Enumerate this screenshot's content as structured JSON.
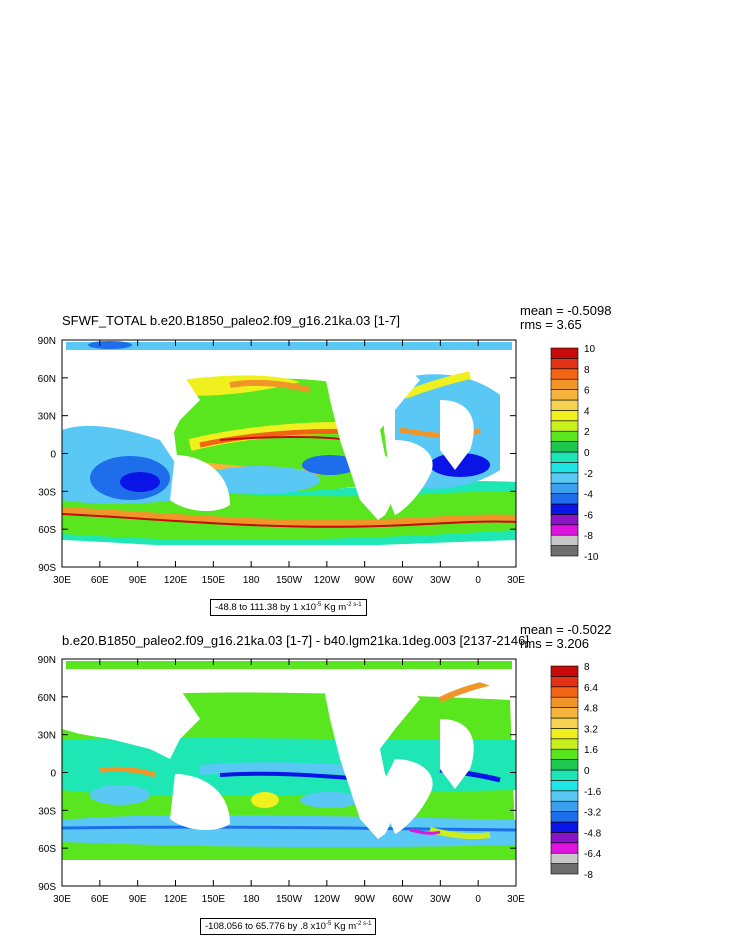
{
  "panels": [
    {
      "title": "SFWF_TOTAL b.e20.B1850_paleo2.f09_g16.21ka.03 [1-7]",
      "mean": "mean = -0.5098",
      "rms": "rms = 3.65",
      "range_prefix": "-48.8 to 111.38 by 1 x10",
      "range_exp": "-5",
      "range_units": " Kg m",
      "range_units_exp": "-2",
      "range_units_sfx": "-1",
      "colorbar_labels": [
        "10",
        "8",
        "6",
        "4",
        "2",
        "0",
        "-2",
        "-4",
        "-6",
        "-8",
        "-10"
      ]
    },
    {
      "title": "b.e20.B1850_paleo2.f09_g16.21ka.03 [1-7] - b40.lgm21ka.1deg.003 [2137-2146]",
      "mean": "mean = -0.5022",
      "rms": "rms = 3.206",
      "range_prefix": "-108.056 to 65.776 by .8 x10",
      "range_exp": "-5",
      "range_units": " Kg m",
      "range_units_exp": "-2",
      "range_units_sfx": "-1",
      "colorbar_labels": [
        "8",
        "6.4",
        "4.8",
        "3.2",
        "1.6",
        "0",
        "-1.6",
        "-3.2",
        "-4.8",
        "-6.4",
        "-8"
      ]
    }
  ],
  "axes": {
    "lat_labels": [
      "90N",
      "60N",
      "30N",
      "0",
      "30S",
      "60S",
      "90S"
    ],
    "lon_labels": [
      "30E",
      "60E",
      "90E",
      "120E",
      "150E",
      "180",
      "150W",
      "120W",
      "90W",
      "60W",
      "30W",
      "0",
      "30E"
    ]
  },
  "colors": {
    "levels": [
      "#6e6e6e",
      "#c8c8c8",
      "#e014e0",
      "#8c14c8",
      "#0a14e6",
      "#1e6eeb",
      "#3ca0f0",
      "#5ac8f5",
      "#1ee6e6",
      "#1ee6b4",
      "#1ec850",
      "#5ae61e",
      "#c8f01e",
      "#f0f01e",
      "#f5d250",
      "#f5b43c",
      "#f09628",
      "#f06414",
      "#e63214",
      "#c80a0a"
    ]
  },
  "chart_data": [
    {
      "type": "heatmap",
      "title": "SFWF_TOTAL b.e20.B1850_paleo2.f09_g16.21ka.03 [1-7]",
      "xlabel": "",
      "ylabel": "",
      "x_range": [
        "30E",
        "30E"
      ],
      "y_range": [
        "90S",
        "90N"
      ],
      "color_range": [
        -10,
        10
      ],
      "color_levels": [
        -10,
        -9,
        -8,
        -7,
        -6,
        -5,
        -4,
        -3,
        -2,
        -1,
        0,
        1,
        2,
        3,
        4,
        5,
        6,
        7,
        8,
        9,
        10
      ],
      "stats": {
        "mean": -0.5098,
        "rms": 3.65
      },
      "data_range": {
        "min": -48.8,
        "max": 111.38,
        "interval": 1,
        "scale": "x10-5",
        "units": "Kg m-2 s-1"
      }
    },
    {
      "type": "heatmap",
      "title": "b.e20.B1850_paleo2.f09_g16.21ka.03 [1-7] - b40.lgm21ka.1deg.003 [2137-2146]",
      "xlabel": "",
      "ylabel": "",
      "x_range": [
        "30E",
        "30E"
      ],
      "y_range": [
        "90S",
        "90N"
      ],
      "color_range": [
        -8,
        8
      ],
      "color_levels": [
        -8,
        -7.2,
        -6.4,
        -5.6,
        -4.8,
        -4,
        -3.2,
        -2.4,
        -1.6,
        -0.8,
        0,
        0.8,
        1.6,
        2.4,
        3.2,
        4,
        4.8,
        5.6,
        6.4,
        7.2,
        8
      ],
      "stats": {
        "mean": -0.5022,
        "rms": 3.206
      },
      "data_range": {
        "min": -108.056,
        "max": 65.776,
        "interval": 0.8,
        "scale": "x10-5",
        "units": "Kg m-2 s-1"
      }
    }
  ]
}
